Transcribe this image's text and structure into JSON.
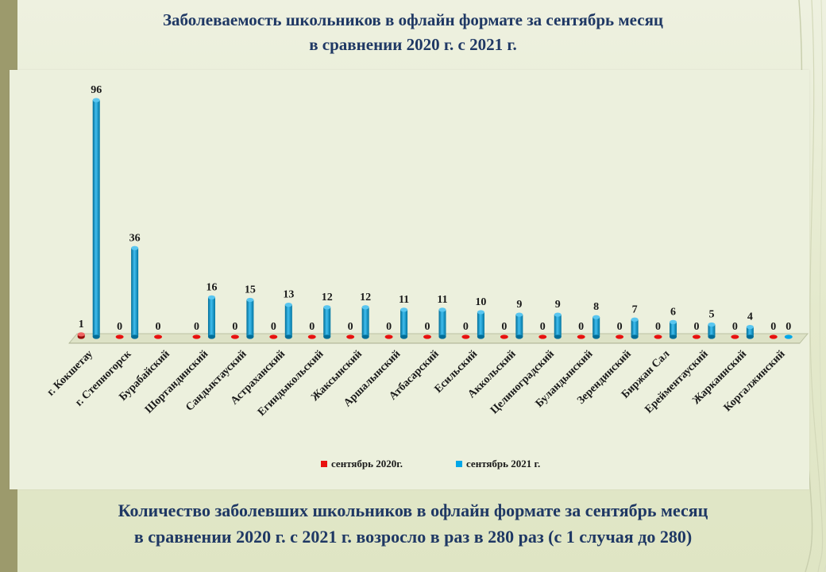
{
  "slide": {
    "title_line1": "Заболеваемость школьников в офлайн формате за сентябрь месяц",
    "title_line2": "в сравнении 2020 г. с 2021 г.",
    "footer_line1": "Количество заболевших школьников в офлайн формате за сентябрь месяц",
    "footer_line2": "в сравнении 2020 г. с 2021 г. возросло в раз в 280 раз (с 1 случая до 280)"
  },
  "colors": {
    "series_2020": "#e8110f",
    "series_2021": "#00a7e8",
    "title_text": "#1f3864",
    "label_text": "#1a1a1a"
  },
  "chart_data": {
    "type": "bar",
    "style": "3d-cylinder",
    "title": "",
    "xlabel": "",
    "ylabel": "",
    "ylim": [
      0,
      96
    ],
    "grid": false,
    "legend_position": "bottom",
    "categories": [
      "г. Кокшетау",
      "г. Степногорск",
      "Бурабайский",
      "Шортандинский",
      "Сандыктауский",
      "Астраханский",
      "Егиндыкольский",
      "Жаксынский",
      "Аршалынский",
      "Атбасарский",
      "Есильский",
      "Аккольский",
      "Целиноградский",
      "Буландынский",
      "Зерендинский",
      "Биржан Сал",
      "Ерейментауский",
      "Жаркаинский",
      "Коргалжинский"
    ],
    "series": [
      {
        "name": "сентябрь 2020г.",
        "color": "#e8110f",
        "values": [
          1,
          0,
          0,
          0,
          0,
          0,
          0,
          0,
          0,
          0,
          0,
          0,
          0,
          0,
          0,
          0,
          0,
          0,
          0
        ],
        "labels": [
          "1",
          "0",
          "0",
          "0",
          "0",
          "0",
          "0",
          "0",
          "0",
          "0",
          "0",
          "0",
          "0",
          "0",
          "0",
          "0",
          "0",
          "0",
          "0"
        ]
      },
      {
        "name": "сентябрь 2021 г.",
        "color": "#00a7e8",
        "values": [
          96,
          36,
          null,
          16,
          15,
          13,
          12,
          12,
          11,
          11,
          10,
          9,
          9,
          8,
          7,
          6,
          5,
          4,
          0
        ],
        "labels": [
          "96",
          "36",
          "",
          "16",
          "15",
          "13",
          "12",
          "12",
          "11",
          "11",
          "10",
          "9",
          "9",
          "8",
          "7",
          "6",
          "5",
          "4",
          "0"
        ]
      }
    ]
  }
}
